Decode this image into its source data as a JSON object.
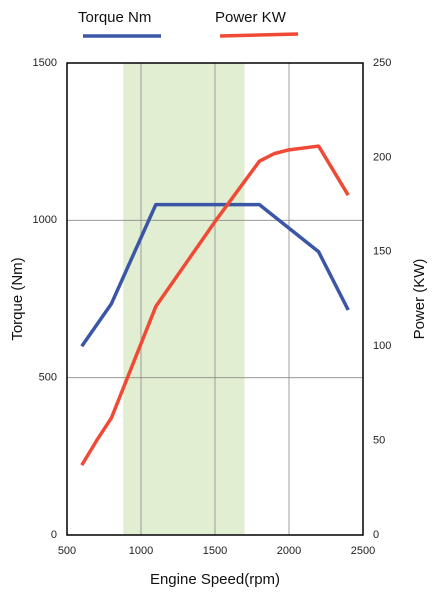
{
  "chart_data": {
    "type": "line",
    "x_label": "Engine Speed(rpm)",
    "y_label": "Torque (Nm)",
    "y2_label": "Power (KW)",
    "x": [
      600,
      700,
      800,
      1100,
      1500,
      1800,
      1900,
      2000,
      2200,
      2400
    ],
    "series": [
      {
        "name": "Torque Nm",
        "color": "#3b56a6",
        "values": [
          600,
          null,
          735,
          1050,
          null,
          1050,
          null,
          null,
          900,
          715
        ]
      },
      {
        "name": "Power KW",
        "color": "#f04a37",
        "axis": "y2",
        "values": [
          37,
          50,
          62,
          121,
          166,
          198,
          202,
          204,
          206,
          180
        ]
      }
    ],
    "highlight_range": [
      880,
      1700
    ],
    "highlight_color": "#e2eed2",
    "xlim": [
      500,
      2500
    ],
    "xticks": [
      500,
      1000,
      1500,
      2000,
      2500
    ],
    "ylim": [
      0,
      1500
    ],
    "yticks": [
      0,
      500,
      1000,
      1500
    ],
    "y2lim": [
      0,
      250
    ],
    "y2ticks": [
      0,
      50,
      100,
      150,
      200,
      250
    ],
    "grid": true,
    "legend": "top"
  }
}
